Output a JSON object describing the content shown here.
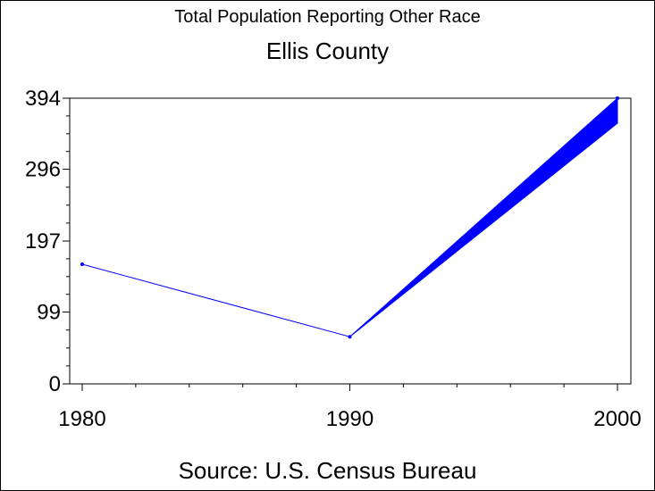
{
  "header": {
    "subtitle": "Total Population Reporting Other Race",
    "title": "Ellis County"
  },
  "footer": {
    "source": "Source: U.S. Census Bureau"
  },
  "colors": {
    "series": "#0000ff",
    "axis": "#000000"
  },
  "chart_data": {
    "type": "line",
    "title": "Ellis County",
    "subtitle": "Total Population Reporting Other Race",
    "x": [
      1980,
      1990,
      2000
    ],
    "series": [
      {
        "values": [
          165,
          65,
          394
        ]
      }
    ],
    "x_ticks": [
      "1980",
      "1990",
      "2000"
    ],
    "y_ticks": [
      "0",
      "99",
      "197",
      "296",
      "394"
    ],
    "xlim": [
      1980,
      2000
    ],
    "ylim": [
      0,
      394
    ],
    "grid": false
  }
}
